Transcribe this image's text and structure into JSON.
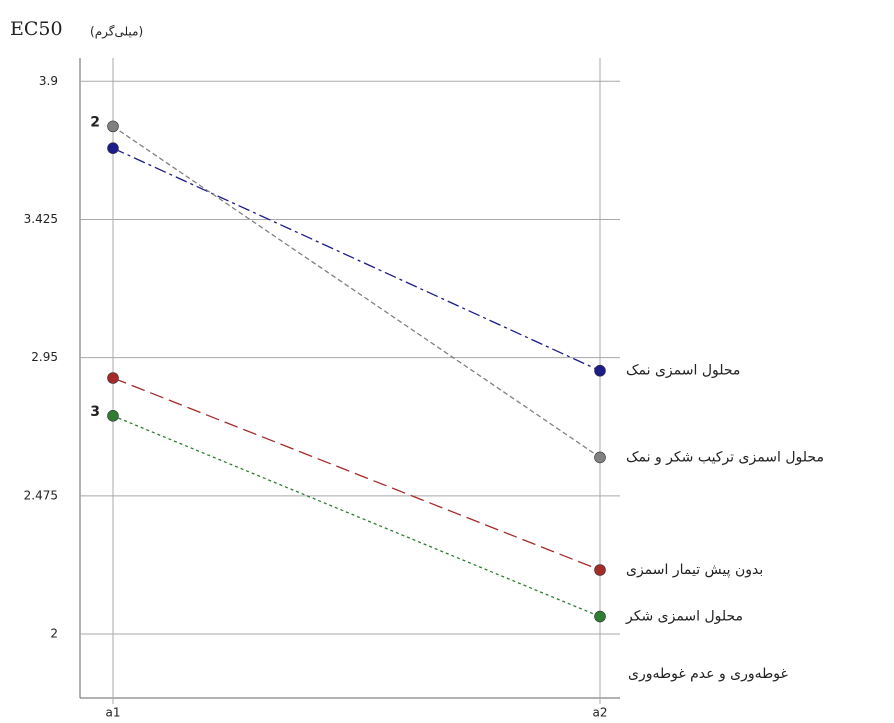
{
  "chart_data": {
    "type": "line",
    "y_axis_title": "EC50",
    "y_axis_unit": "(میلی‌گرم)",
    "legend_title": "غوطه‌وری و عدم غوطه‌وری",
    "categories": [
      "a1",
      "a2"
    ],
    "series": [
      {
        "name": "محلول اسمزی نمک",
        "color": "#1c1c8a",
        "values": [
          3.67,
          2.905
        ]
      },
      {
        "name": "محلول اسمزی ترکیب شکر و نمک",
        "color": "#808080",
        "values": [
          3.745,
          2.607
        ]
      },
      {
        "name": "بدون پیش تیمار اسمزی",
        "color": "#a52a2a",
        "values": [
          2.88,
          2.22
        ]
      },
      {
        "name": "محلول اسمزی شکر",
        "color": "#2e7d32",
        "values": [
          2.75,
          2.06
        ]
      }
    ],
    "annotations": [
      "2",
      "3"
    ],
    "ylim": [
      1.78,
      3.98
    ],
    "yticks": [
      2,
      2.475,
      2.95,
      3.425,
      3.9
    ],
    "grid": true
  }
}
